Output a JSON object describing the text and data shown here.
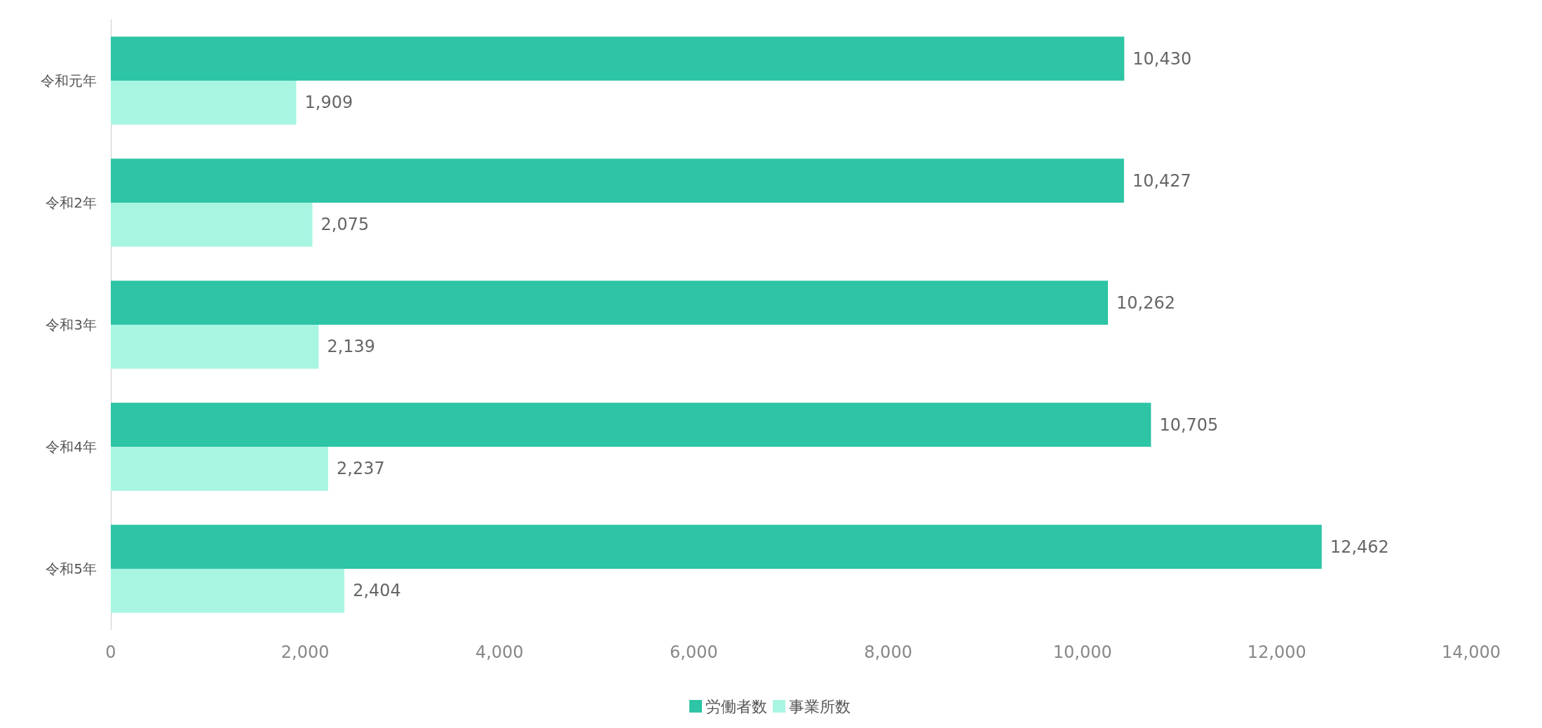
{
  "chart_data": {
    "type": "bar",
    "orientation": "horizontal",
    "categories": [
      "令和元年",
      "令和2年",
      "令和3年",
      "令和4年",
      "令和5年"
    ],
    "series": [
      {
        "name": "労働者数",
        "color": "#2ec4a6",
        "values": [
          10430,
          10427,
          10262,
          10705,
          12462
        ],
        "value_labels": [
          "10,430",
          "10,427",
          "10,262",
          "10,705",
          "12,462"
        ]
      },
      {
        "name": "事業所数",
        "color": "#a8f5e2",
        "values": [
          1909,
          2075,
          2139,
          2237,
          2404
        ],
        "value_labels": [
          "1,909",
          "2,075",
          "2,139",
          "2,237",
          "2,404"
        ]
      }
    ],
    "xlim": [
      0,
      14000
    ],
    "xticks": [
      0,
      {
        "value": 2000,
        "label": "2,000"
      },
      {
        "value": 4000,
        "label": "4,000"
      },
      {
        "value": 6000,
        "label": "6,000"
      },
      {
        "value": 8000,
        "label": "8,000"
      },
      {
        "value": 10000,
        "label": "10,000"
      },
      {
        "value": 12000,
        "label": "12,000"
      },
      {
        "value": 14000,
        "label": "14,000"
      }
    ],
    "grid": false,
    "legend": "bottom"
  }
}
